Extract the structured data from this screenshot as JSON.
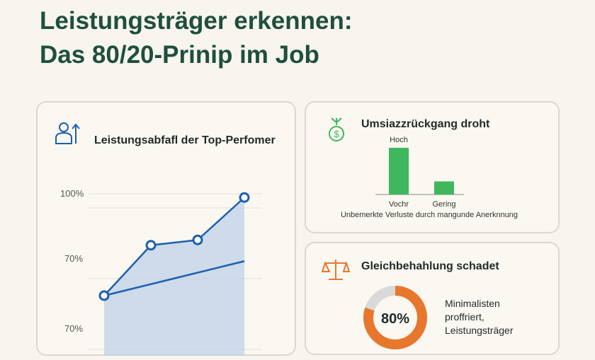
{
  "title": {
    "line1": "Leistungsträger erkennen:",
    "line2": "Das 80/20-Prinip im Job"
  },
  "colors": {
    "title": "#1f4f3d",
    "line": "#1f5fad",
    "area": "#b9cfe8",
    "bar": "#3fb75c",
    "donut": "#e8772e",
    "donut_track": "#d9d9d9"
  },
  "left_card": {
    "icon": "person-growth-icon",
    "heading": "Leistungsabfafl der Top-Perfomer"
  },
  "top_right_card": {
    "icon": "dollar-sprout-icon",
    "heading": "Umsiazzrückgang droht",
    "caption": "Unbemerkte Verluste durch mangunde Anerknnung"
  },
  "bottom_right_card": {
    "icon": "balance-scale-icon",
    "heading": "Gleichbehahlung schadet",
    "donut_label": "80%",
    "text_lines": [
      "Minimalisten",
      "proffriert,",
      "Leistungsträger"
    ]
  },
  "chart_data": [
    {
      "type": "line",
      "title": "Leistungsabfafl der Top-Perfomer",
      "ytick_labels": [
        "100%",
        "70%",
        "70%"
      ],
      "ylim": [
        60,
        100
      ],
      "x": [
        1,
        2,
        3,
        4
      ],
      "series": [
        {
          "x": [
            1,
            2,
            3,
            4
          ],
          "values": [
            74,
            83.5,
            84.5,
            92.5
          ],
          "markers": true
        },
        {
          "x": [
            1,
            4
          ],
          "values": [
            74,
            80.5
          ],
          "markers": false
        }
      ],
      "grid": true
    },
    {
      "type": "bar",
      "categories": [
        "Vochr",
        "Gering"
      ],
      "values": [
        100,
        28
      ],
      "data_labels": [
        "Hoch",
        ""
      ]
    },
    {
      "type": "pie",
      "values": [
        80,
        20
      ],
      "center_label": "80%"
    }
  ]
}
